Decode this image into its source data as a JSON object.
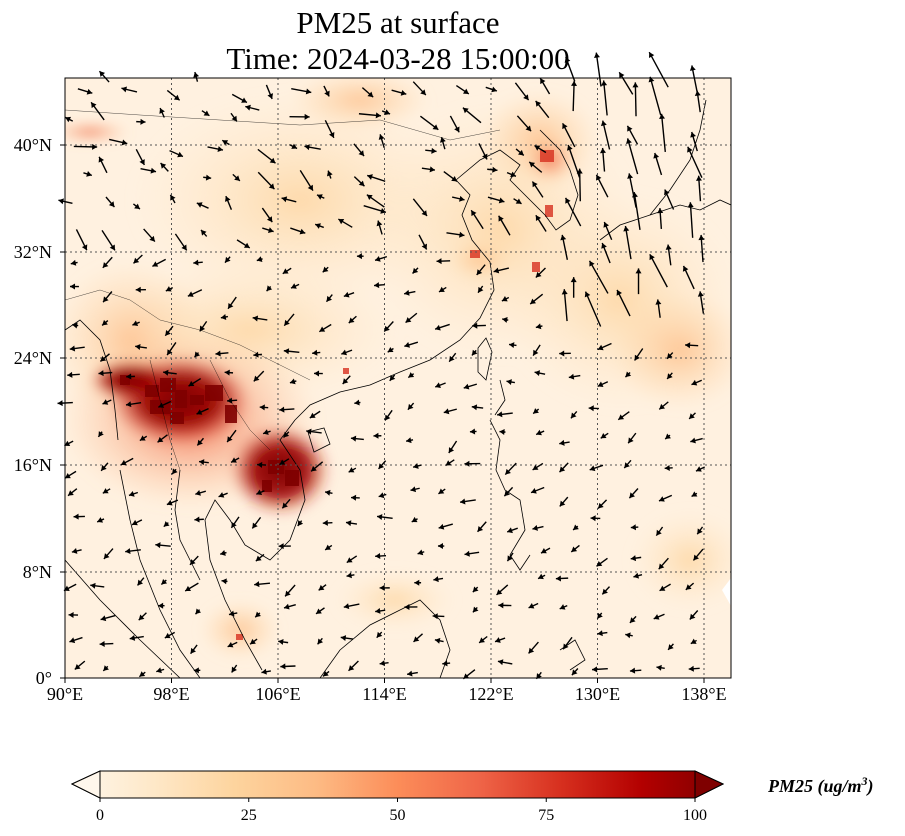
{
  "title": {
    "line1": "PM25 at surface",
    "line2": "Time: 2024-03-28 15:00:00"
  },
  "map": {
    "extent_lon": [
      90,
      140
    ],
    "extent_lat": [
      0,
      45
    ],
    "lat_ticks": [
      "0°",
      "8°N",
      "16°N",
      "24°N",
      "32°N",
      "40°N"
    ],
    "lon_ticks": [
      "90°E",
      "98°E",
      "106°E",
      "114°E",
      "122°E",
      "130°E",
      "138°E"
    ],
    "gridlines": true,
    "wind_vectors": true
  },
  "colorbar": {
    "label": "PM25 (ug/m",
    "label_sup": "3",
    "label_close": ")",
    "ticks": [
      "0",
      "25",
      "50",
      "75",
      "100"
    ],
    "range": [
      0,
      100
    ],
    "colormap": "OrRd",
    "colors": [
      "#fff7ec",
      "#fee8c8",
      "#fdd49e",
      "#fdbb84",
      "#fc8d59",
      "#ef6548",
      "#d7301f",
      "#b30000",
      "#7f0000"
    ]
  }
}
